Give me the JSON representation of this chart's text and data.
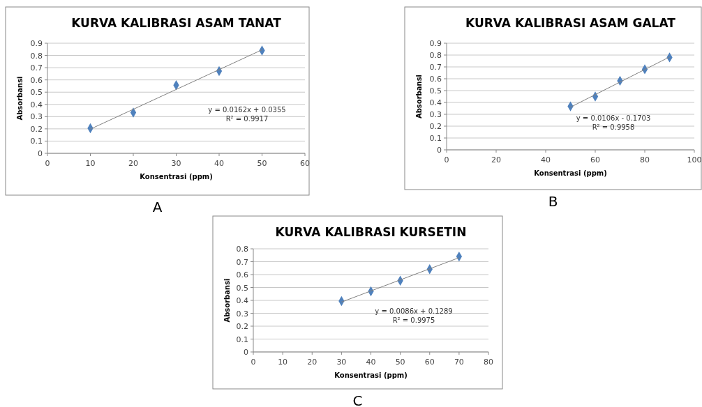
{
  "chart_data": [
    {
      "type": "scatter",
      "title": "KURVA KALIBRASI ASAM TANAT",
      "xlabel": "Konsentrasi (ppm)",
      "ylabel": "Absorbansi",
      "marker": "diamond",
      "grid": "y",
      "xlim": [
        0,
        60
      ],
      "xticks": [
        0,
        10,
        20,
        30,
        40,
        50,
        60
      ],
      "ylim": [
        0,
        0.9
      ],
      "yticks": [
        0,
        0.1,
        0.2,
        0.3,
        0.4,
        0.5,
        0.6,
        0.7,
        0.8,
        0.9
      ],
      "series": [
        {
          "type": "scatter",
          "color": "#4f81bd",
          "x": [
            10,
            20,
            30,
            40,
            50
          ],
          "values": [
            0.205,
            0.333,
            0.557,
            0.672,
            0.84
          ]
        },
        {
          "type": "line",
          "color": "#808080",
          "marker": "none",
          "x": [
            10,
            50
          ],
          "values": [
            0.198,
            0.846
          ]
        }
      ],
      "annotations": [
        "y = 0.0162x + 0.0355",
        "R² = 0.9917",
        "A"
      ]
    },
    {
      "type": "scatter",
      "title": "KURVA KALIBRASI ASAM GALAT",
      "xlabel": "Konsentrasi (ppm)",
      "ylabel": "Absorbansi",
      "marker": "diamond",
      "grid": "y",
      "xlim": [
        0,
        100
      ],
      "xticks": [
        0,
        20,
        40,
        60,
        80,
        100
      ],
      "ylim": [
        0,
        0.9
      ],
      "yticks": [
        0,
        0.1,
        0.2,
        0.3,
        0.4,
        0.5,
        0.6,
        0.7,
        0.8,
        0.9
      ],
      "series": [
        {
          "type": "scatter",
          "color": "#4f81bd",
          "x": [
            50,
            60,
            70,
            80,
            90
          ],
          "values": [
            0.367,
            0.45,
            0.583,
            0.68,
            0.78
          ]
        },
        {
          "type": "line",
          "color": "#808080",
          "marker": "none",
          "x": [
            50,
            90
          ],
          "values": [
            0.36,
            0.784
          ]
        }
      ],
      "annotations": [
        "y = 0.0106x - 0.1703",
        "R² = 0.9958",
        "B"
      ]
    },
    {
      "type": "scatter",
      "title": "KURVA KALIBRASI KURSETIN",
      "xlabel": "Konsentrasi (ppm)",
      "ylabel": "Absorbansi",
      "marker": "diamond",
      "grid": "y",
      "xlim": [
        0,
        80
      ],
      "xticks": [
        0,
        10,
        20,
        30,
        40,
        50,
        60,
        70,
        80
      ],
      "ylim": [
        0,
        0.8
      ],
      "yticks": [
        0,
        0.1,
        0.2,
        0.3,
        0.4,
        0.5,
        0.6,
        0.7,
        0.8
      ],
      "series": [
        {
          "type": "scatter",
          "color": "#4f81bd",
          "x": [
            30,
            40,
            50,
            60,
            70
          ],
          "values": [
            0.395,
            0.47,
            0.553,
            0.642,
            0.74
          ]
        },
        {
          "type": "line",
          "color": "#808080",
          "marker": "none",
          "x": [
            30,
            70
          ],
          "values": [
            0.387,
            0.731
          ]
        }
      ],
      "annotations": [
        "y = 0.0086x + 0.1289",
        "R² = 0.9975",
        "C"
      ]
    }
  ]
}
